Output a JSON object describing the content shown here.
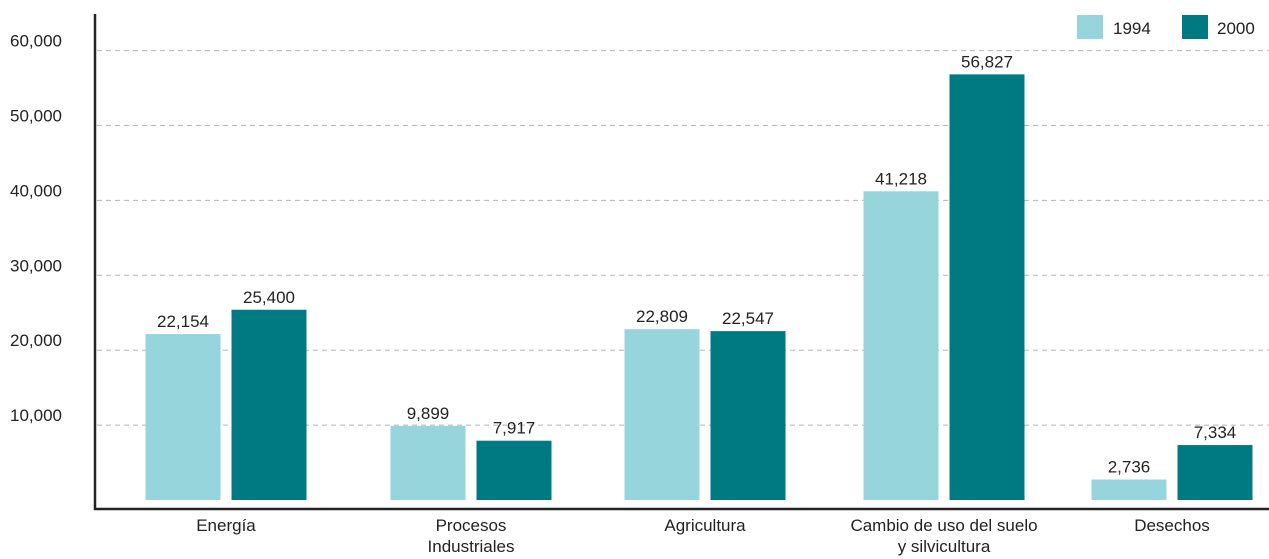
{
  "chart_data": {
    "type": "bar",
    "categories": [
      [
        "Energía"
      ],
      [
        "Procesos",
        "Industriales"
      ],
      [
        "Agricultura"
      ],
      [
        "Cambio de uso del suelo",
        "y silvicultura"
      ],
      [
        "Desechos"
      ]
    ],
    "series": [
      {
        "name": "1994",
        "color": "#96d5dc",
        "values": [
          22154,
          9899,
          22809,
          41218,
          2736
        ],
        "labels": [
          "22,154",
          "9,899",
          "22,809",
          "41,218",
          "2,736"
        ]
      },
      {
        "name": "2000",
        "color": "#007a82",
        "values": [
          25400,
          7917,
          22547,
          56827,
          7334
        ],
        "labels": [
          "25,400",
          "7,917",
          "22,547",
          "56,827",
          "7,334"
        ]
      }
    ],
    "yticks": [
      {
        "value": 10000,
        "label": "10,000"
      },
      {
        "value": 20000,
        "label": "20,000"
      },
      {
        "value": 30000,
        "label": "30,000"
      },
      {
        "value": 40000,
        "label": "40,000"
      },
      {
        "value": 50000,
        "label": "50,000"
      },
      {
        "value": 60000,
        "label": "60,000"
      }
    ],
    "ylim": [
      0,
      60000
    ],
    "grid": true,
    "legend_position": "top-right",
    "title": "",
    "xlabel": "",
    "ylabel": ""
  }
}
